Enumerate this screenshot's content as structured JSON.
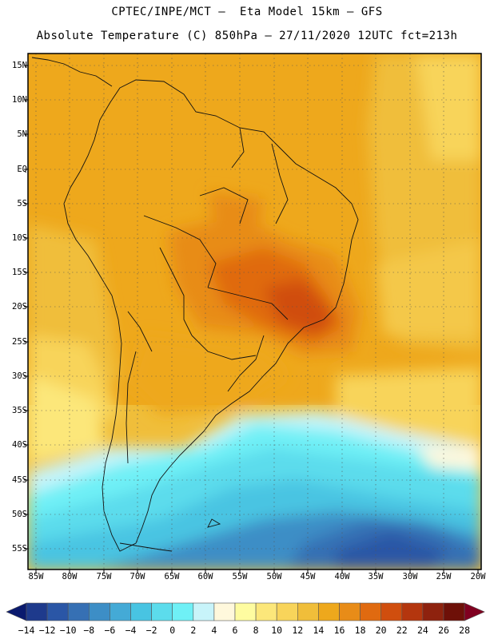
{
  "title": {
    "line1": "CPTEC/INPE/MCT –  Eta Model 15km – GFS",
    "line2": "Absolute Temperature (C) 850hPa – 27/11/2020 12UTC fct=213h"
  },
  "map": {
    "lat_labels": [
      "15N",
      "10N",
      "5N",
      "EQ",
      "5S",
      "10S",
      "15S",
      "20S",
      "25S",
      "30S",
      "35S",
      "40S",
      "45S",
      "50S",
      "55S"
    ],
    "lon_labels": [
      "85W",
      "80W",
      "75W",
      "70W",
      "65W",
      "60W",
      "55W",
      "50W",
      "45W",
      "40W",
      "35W",
      "30W",
      "25W",
      "20W"
    ],
    "lat_range": [
      -58,
      17
    ],
    "lon_range": [
      -86,
      -20
    ],
    "grid": "dotted"
  },
  "colorbar": {
    "labels": [
      "-14",
      "-12",
      "-10",
      "-8",
      "-6",
      "-4",
      "-2",
      "0",
      "2",
      "4",
      "6",
      "8",
      "10",
      "12",
      "14",
      "16",
      "18",
      "20",
      "22",
      "24",
      "26",
      "28"
    ],
    "colors": [
      "#0a1a6e",
      "#1e3a8c",
      "#2a56a6",
      "#3670b4",
      "#3d8ec6",
      "#44aad6",
      "#48c4e2",
      "#5cdcec",
      "#6ff0f6",
      "#c8f4fa",
      "#fff8dc",
      "#fefca0",
      "#fce77a",
      "#f8d45a",
      "#f0be3a",
      "#eea81c",
      "#e88c18",
      "#e06a10",
      "#d04e0e",
      "#b4360e",
      "#8e220e",
      "#6e1008",
      "#800020"
    ]
  }
}
